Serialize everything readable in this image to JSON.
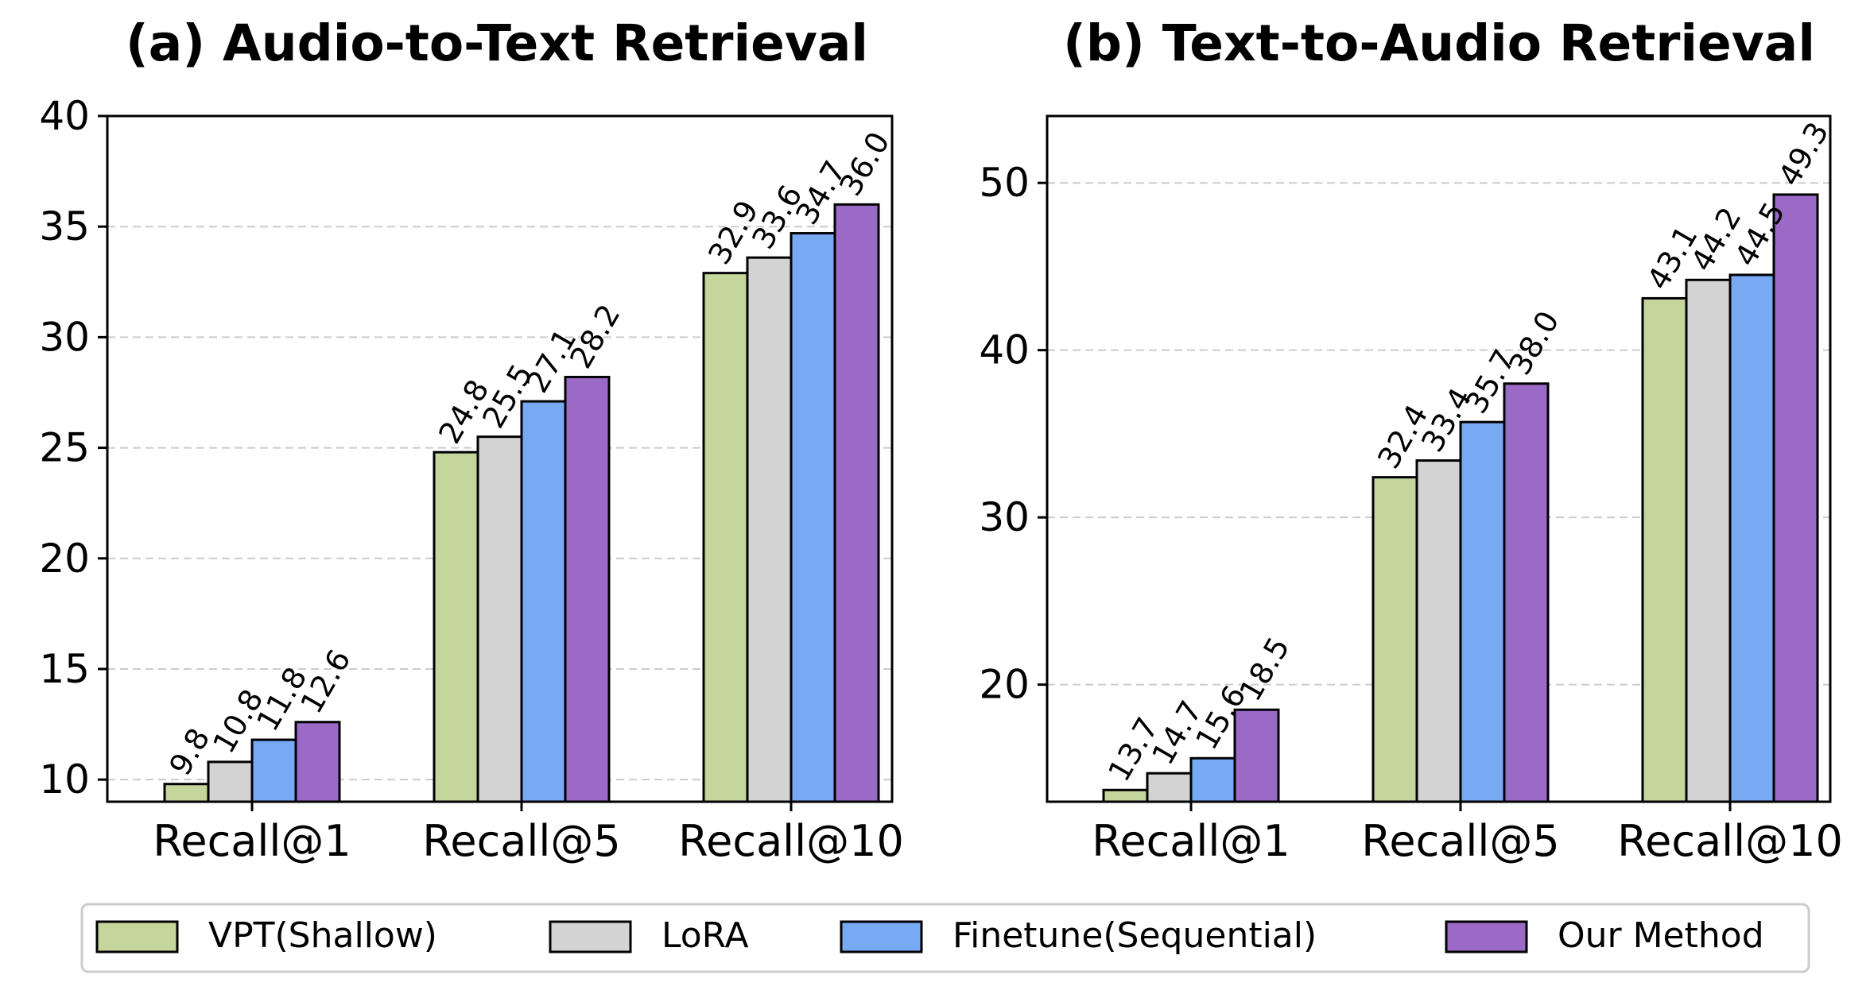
{
  "chart_data": [
    {
      "type": "bar",
      "title": "(a) Audio-to-Text Retrieval",
      "categories": [
        "Recall@1",
        "Recall@5",
        "Recall@10"
      ],
      "ylim": [
        9,
        40
      ],
      "yticks": [
        10,
        15,
        20,
        25,
        30,
        35,
        40
      ],
      "grid": true,
      "series": [
        {
          "name": "VPT(Shallow)",
          "values": [
            9.8,
            24.8,
            32.9
          ],
          "labels": [
            "9.8",
            "24.8",
            "32.9"
          ]
        },
        {
          "name": "LoRA",
          "values": [
            10.8,
            25.5,
            33.6
          ],
          "labels": [
            "10.8",
            "25.5",
            "33.6"
          ]
        },
        {
          "name": "Finetune(Sequential)",
          "values": [
            11.8,
            27.1,
            34.7
          ],
          "labels": [
            "11.8",
            "27.1",
            "34.7"
          ]
        },
        {
          "name": "Our Method",
          "values": [
            12.6,
            28.2,
            36.0
          ],
          "labels": [
            "12.6",
            "28.2",
            "36.0"
          ]
        }
      ]
    },
    {
      "type": "bar",
      "title": "(b) Text-to-Audio Retrieval",
      "categories": [
        "Recall@1",
        "Recall@5",
        "Recall@10"
      ],
      "ylim": [
        13,
        54
      ],
      "yticks": [
        20,
        30,
        40,
        50
      ],
      "grid": true,
      "series": [
        {
          "name": "VPT(Shallow)",
          "values": [
            13.7,
            32.4,
            43.1
          ],
          "labels": [
            "13.7",
            "32.4",
            "43.1"
          ]
        },
        {
          "name": "LoRA",
          "values": [
            14.7,
            33.4,
            44.2
          ],
          "labels": [
            "14.7",
            "33.4",
            "44.2"
          ]
        },
        {
          "name": "Finetune(Sequential)",
          "values": [
            15.6,
            35.7,
            44.5
          ],
          "labels": [
            "15.6",
            "35.7",
            "44.5"
          ]
        },
        {
          "name": "Our Method",
          "values": [
            18.5,
            38.0,
            49.3
          ],
          "labels": [
            "18.5",
            "38.0",
            "49.3"
          ]
        }
      ]
    }
  ],
  "legend": {
    "position": "bottom-center",
    "entries": [
      {
        "name": "VPT(Shallow)",
        "color": "#c4d69c"
      },
      {
        "name": "LoRA",
        "color": "#d3d3d3"
      },
      {
        "name": "Finetune(Sequential)",
        "color": "#78aaf4"
      },
      {
        "name": "Our Method",
        "color": "#9b69c6"
      }
    ]
  },
  "colors": [
    "#c4d69c",
    "#d3d3d3",
    "#78aaf4",
    "#9b69c6"
  ]
}
